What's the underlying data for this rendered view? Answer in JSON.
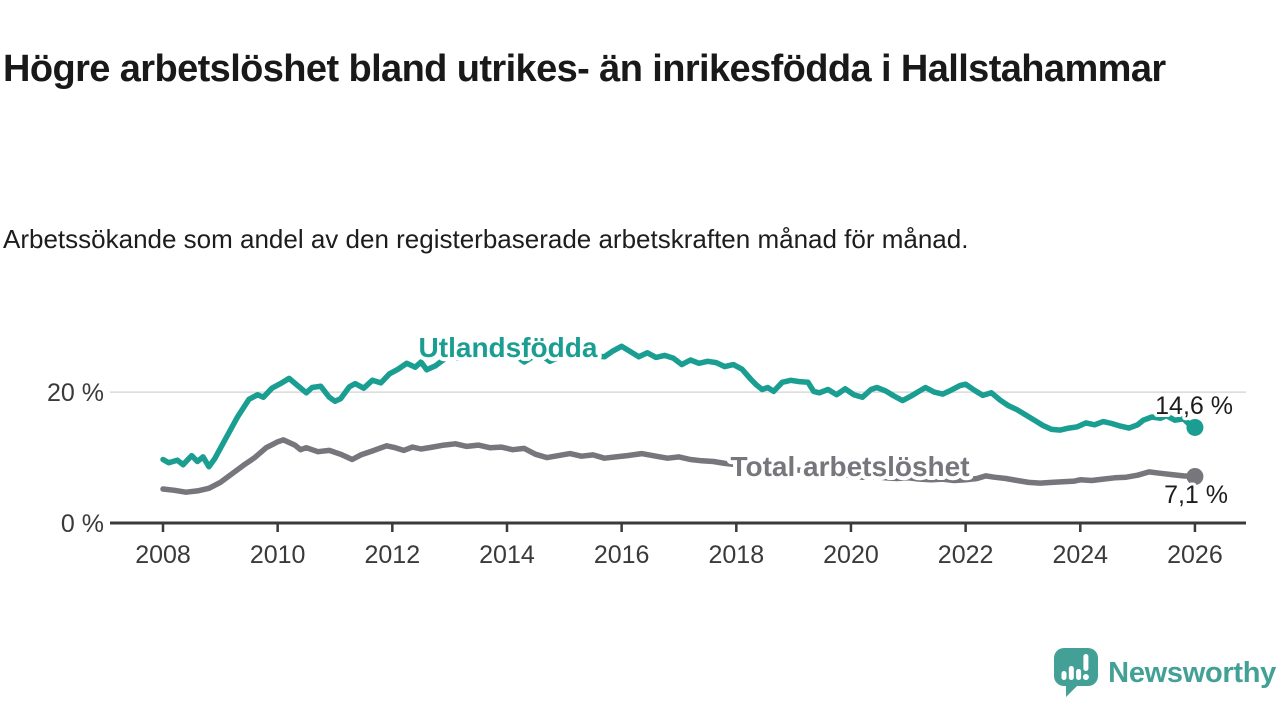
{
  "header": {
    "title": "Högre arbetslöshet bland utrikes- än inrikesfödda i Hallstahammar",
    "subtitle": "Arbetssökande som andel av den registerbaserade arbetskraften månad för månad."
  },
  "footer": {
    "brand": "Newsworthy"
  },
  "colors": {
    "utlandsfodda": "#1b9e92",
    "total": "#76767c",
    "axis": "#3a3a3a",
    "grid": "#d9d9d9",
    "brand_teal": "#42a096"
  },
  "chart_data": {
    "type": "line",
    "title": "Högre arbetslöshet bland utrikes- än inrikesfödda i Hallstahammar",
    "subtitle": "Arbetssökande som andel av den registerbaserade arbetskraften månad för månad.",
    "ylabel": "",
    "xlabel": "",
    "unit": "%",
    "xlim": [
      2007.1,
      2026.9
    ],
    "ylim": [
      0,
      30.5
    ],
    "grid": "horizontal-20-only",
    "legend_position": "inline-labels",
    "x_ticks": [
      2008,
      2010,
      2012,
      2014,
      2016,
      2018,
      2020,
      2022,
      2024,
      2026
    ],
    "x_tick_labels": [
      "2008",
      "2010",
      "2012",
      "2014",
      "2016",
      "2018",
      "2020",
      "2022",
      "2024",
      "2026"
    ],
    "y_ticks": [
      {
        "value": 0,
        "label": "0 %"
      },
      {
        "value": 20,
        "label": "20 %"
      }
    ],
    "series": [
      {
        "name": "Utlandsfödda",
        "color": "#1b9e92",
        "end_value": 14.6,
        "end_value_label": "14,6 %",
        "points": [
          [
            2008.0,
            9.7
          ],
          [
            2008.1,
            9.2
          ],
          [
            2008.25,
            9.6
          ],
          [
            2008.35,
            8.9
          ],
          [
            2008.5,
            10.3
          ],
          [
            2008.6,
            9.4
          ],
          [
            2008.7,
            10.1
          ],
          [
            2008.8,
            8.6
          ],
          [
            2008.9,
            9.8
          ],
          [
            2009.0,
            11.4
          ],
          [
            2009.15,
            13.8
          ],
          [
            2009.3,
            16.2
          ],
          [
            2009.5,
            18.9
          ],
          [
            2009.65,
            19.6
          ],
          [
            2009.75,
            19.2
          ],
          [
            2009.9,
            20.6
          ],
          [
            2010.05,
            21.3
          ],
          [
            2010.2,
            22.1
          ],
          [
            2010.35,
            21.0
          ],
          [
            2010.5,
            19.9
          ],
          [
            2010.6,
            20.7
          ],
          [
            2010.75,
            20.9
          ],
          [
            2010.9,
            19.2
          ],
          [
            2011.0,
            18.6
          ],
          [
            2011.1,
            19.0
          ],
          [
            2011.25,
            20.8
          ],
          [
            2011.35,
            21.3
          ],
          [
            2011.5,
            20.6
          ],
          [
            2011.65,
            21.8
          ],
          [
            2011.8,
            21.4
          ],
          [
            2011.95,
            22.8
          ],
          [
            2012.1,
            23.5
          ],
          [
            2012.25,
            24.4
          ],
          [
            2012.4,
            23.8
          ],
          [
            2012.5,
            24.6
          ],
          [
            2012.6,
            23.4
          ],
          [
            2012.75,
            24.0
          ],
          [
            2012.9,
            25.0
          ],
          [
            2013.0,
            25.6
          ],
          [
            2013.15,
            25.2
          ],
          [
            2013.3,
            25.9
          ],
          [
            2013.5,
            26.1
          ],
          [
            2013.65,
            25.5
          ],
          [
            2013.8,
            25.8
          ],
          [
            2014.0,
            26.0
          ],
          [
            2014.15,
            25.6
          ],
          [
            2014.3,
            24.6
          ],
          [
            2014.45,
            25.4
          ],
          [
            2014.6,
            25.6
          ],
          [
            2014.75,
            24.7
          ],
          [
            2014.9,
            25.3
          ],
          [
            2015.0,
            25.5
          ],
          [
            2015.2,
            25.8
          ],
          [
            2015.35,
            25.3
          ],
          [
            2015.5,
            25.6
          ],
          [
            2015.7,
            25.4
          ],
          [
            2015.85,
            26.3
          ],
          [
            2016.0,
            27.0
          ],
          [
            2016.15,
            26.2
          ],
          [
            2016.3,
            25.4
          ],
          [
            2016.45,
            26.0
          ],
          [
            2016.6,
            25.3
          ],
          [
            2016.75,
            25.6
          ],
          [
            2016.9,
            25.2
          ],
          [
            2017.05,
            24.2
          ],
          [
            2017.2,
            24.9
          ],
          [
            2017.35,
            24.4
          ],
          [
            2017.5,
            24.7
          ],
          [
            2017.65,
            24.5
          ],
          [
            2017.8,
            23.9
          ],
          [
            2017.95,
            24.2
          ],
          [
            2018.1,
            23.5
          ],
          [
            2018.25,
            22.0
          ],
          [
            2018.35,
            21.1
          ],
          [
            2018.45,
            20.4
          ],
          [
            2018.55,
            20.7
          ],
          [
            2018.65,
            20.1
          ],
          [
            2018.8,
            21.5
          ],
          [
            2018.95,
            21.8
          ],
          [
            2019.1,
            21.6
          ],
          [
            2019.25,
            21.5
          ],
          [
            2019.35,
            20.1
          ],
          [
            2019.45,
            19.9
          ],
          [
            2019.6,
            20.4
          ],
          [
            2019.75,
            19.6
          ],
          [
            2019.9,
            20.5
          ],
          [
            2020.05,
            19.6
          ],
          [
            2020.2,
            19.2
          ],
          [
            2020.35,
            20.4
          ],
          [
            2020.45,
            20.7
          ],
          [
            2020.6,
            20.2
          ],
          [
            2020.75,
            19.4
          ],
          [
            2020.9,
            18.7
          ],
          [
            2021.05,
            19.4
          ],
          [
            2021.2,
            20.2
          ],
          [
            2021.3,
            20.7
          ],
          [
            2021.45,
            20.0
          ],
          [
            2021.6,
            19.7
          ],
          [
            2021.75,
            20.3
          ],
          [
            2021.9,
            21.0
          ],
          [
            2022.0,
            21.2
          ],
          [
            2022.15,
            20.3
          ],
          [
            2022.3,
            19.5
          ],
          [
            2022.45,
            19.9
          ],
          [
            2022.6,
            18.8
          ],
          [
            2022.75,
            17.9
          ],
          [
            2022.9,
            17.3
          ],
          [
            2023.05,
            16.5
          ],
          [
            2023.2,
            15.7
          ],
          [
            2023.35,
            14.9
          ],
          [
            2023.5,
            14.3
          ],
          [
            2023.65,
            14.2
          ],
          [
            2023.8,
            14.5
          ],
          [
            2023.95,
            14.7
          ],
          [
            2024.1,
            15.3
          ],
          [
            2024.25,
            15.0
          ],
          [
            2024.4,
            15.5
          ],
          [
            2024.55,
            15.2
          ],
          [
            2024.7,
            14.8
          ],
          [
            2024.85,
            14.5
          ],
          [
            2025.0,
            15.0
          ],
          [
            2025.1,
            15.7
          ],
          [
            2025.25,
            16.2
          ],
          [
            2025.4,
            16.0
          ],
          [
            2025.5,
            16.4
          ],
          [
            2025.65,
            15.7
          ],
          [
            2025.8,
            15.9
          ],
          [
            2025.9,
            15.1
          ],
          [
            2026.0,
            14.6
          ]
        ]
      },
      {
        "name": "Total arbetslöshet",
        "color": "#76767c",
        "end_value": 7.1,
        "end_value_label": "7,1 %",
        "points": [
          [
            2008.0,
            5.2
          ],
          [
            2008.2,
            5.0
          ],
          [
            2008.4,
            4.7
          ],
          [
            2008.6,
            4.9
          ],
          [
            2008.8,
            5.3
          ],
          [
            2009.0,
            6.2
          ],
          [
            2009.2,
            7.5
          ],
          [
            2009.4,
            8.8
          ],
          [
            2009.6,
            10.0
          ],
          [
            2009.8,
            11.5
          ],
          [
            2010.0,
            12.4
          ],
          [
            2010.1,
            12.7
          ],
          [
            2010.3,
            11.9
          ],
          [
            2010.4,
            11.2
          ],
          [
            2010.5,
            11.5
          ],
          [
            2010.7,
            10.9
          ],
          [
            2010.9,
            11.1
          ],
          [
            2011.1,
            10.5
          ],
          [
            2011.3,
            9.7
          ],
          [
            2011.45,
            10.4
          ],
          [
            2011.65,
            11.0
          ],
          [
            2011.9,
            11.8
          ],
          [
            2012.05,
            11.5
          ],
          [
            2012.2,
            11.1
          ],
          [
            2012.35,
            11.6
          ],
          [
            2012.5,
            11.3
          ],
          [
            2012.7,
            11.6
          ],
          [
            2012.9,
            11.9
          ],
          [
            2013.1,
            12.1
          ],
          [
            2013.3,
            11.7
          ],
          [
            2013.5,
            11.9
          ],
          [
            2013.7,
            11.5
          ],
          [
            2013.9,
            11.6
          ],
          [
            2014.1,
            11.2
          ],
          [
            2014.3,
            11.4
          ],
          [
            2014.5,
            10.5
          ],
          [
            2014.7,
            10.0
          ],
          [
            2014.9,
            10.3
          ],
          [
            2015.1,
            10.6
          ],
          [
            2015.3,
            10.2
          ],
          [
            2015.5,
            10.4
          ],
          [
            2015.7,
            9.9
          ],
          [
            2015.9,
            10.1
          ],
          [
            2016.1,
            10.3
          ],
          [
            2016.35,
            10.6
          ],
          [
            2016.6,
            10.2
          ],
          [
            2016.8,
            9.9
          ],
          [
            2017.0,
            10.1
          ],
          [
            2017.2,
            9.7
          ],
          [
            2017.4,
            9.5
          ],
          [
            2017.6,
            9.4
          ],
          [
            2017.8,
            9.1
          ],
          [
            2018.0,
            8.9
          ],
          [
            2018.3,
            8.6
          ],
          [
            2018.6,
            8.4
          ],
          [
            2018.9,
            8.2
          ],
          [
            2019.2,
            8.0
          ],
          [
            2019.5,
            7.8
          ],
          [
            2019.8,
            7.5
          ],
          [
            2020.0,
            7.2
          ],
          [
            2020.2,
            7.0
          ],
          [
            2020.4,
            7.1
          ],
          [
            2020.6,
            6.9
          ],
          [
            2020.8,
            6.8
          ],
          [
            2021.0,
            6.9
          ],
          [
            2021.2,
            6.7
          ],
          [
            2021.4,
            6.6
          ],
          [
            2021.6,
            6.7
          ],
          [
            2021.8,
            6.5
          ],
          [
            2022.0,
            6.6
          ],
          [
            2022.2,
            6.8
          ],
          [
            2022.35,
            7.2
          ],
          [
            2022.5,
            7.0
          ],
          [
            2022.7,
            6.8
          ],
          [
            2022.9,
            6.5
          ],
          [
            2023.1,
            6.2
          ],
          [
            2023.3,
            6.1
          ],
          [
            2023.5,
            6.2
          ],
          [
            2023.7,
            6.3
          ],
          [
            2023.9,
            6.4
          ],
          [
            2024.0,
            6.6
          ],
          [
            2024.2,
            6.5
          ],
          [
            2024.4,
            6.7
          ],
          [
            2024.6,
            6.9
          ],
          [
            2024.8,
            7.0
          ],
          [
            2025.0,
            7.3
          ],
          [
            2025.2,
            7.8
          ],
          [
            2025.4,
            7.6
          ],
          [
            2025.6,
            7.4
          ],
          [
            2025.8,
            7.2
          ],
          [
            2026.0,
            7.1
          ]
        ]
      }
    ]
  }
}
